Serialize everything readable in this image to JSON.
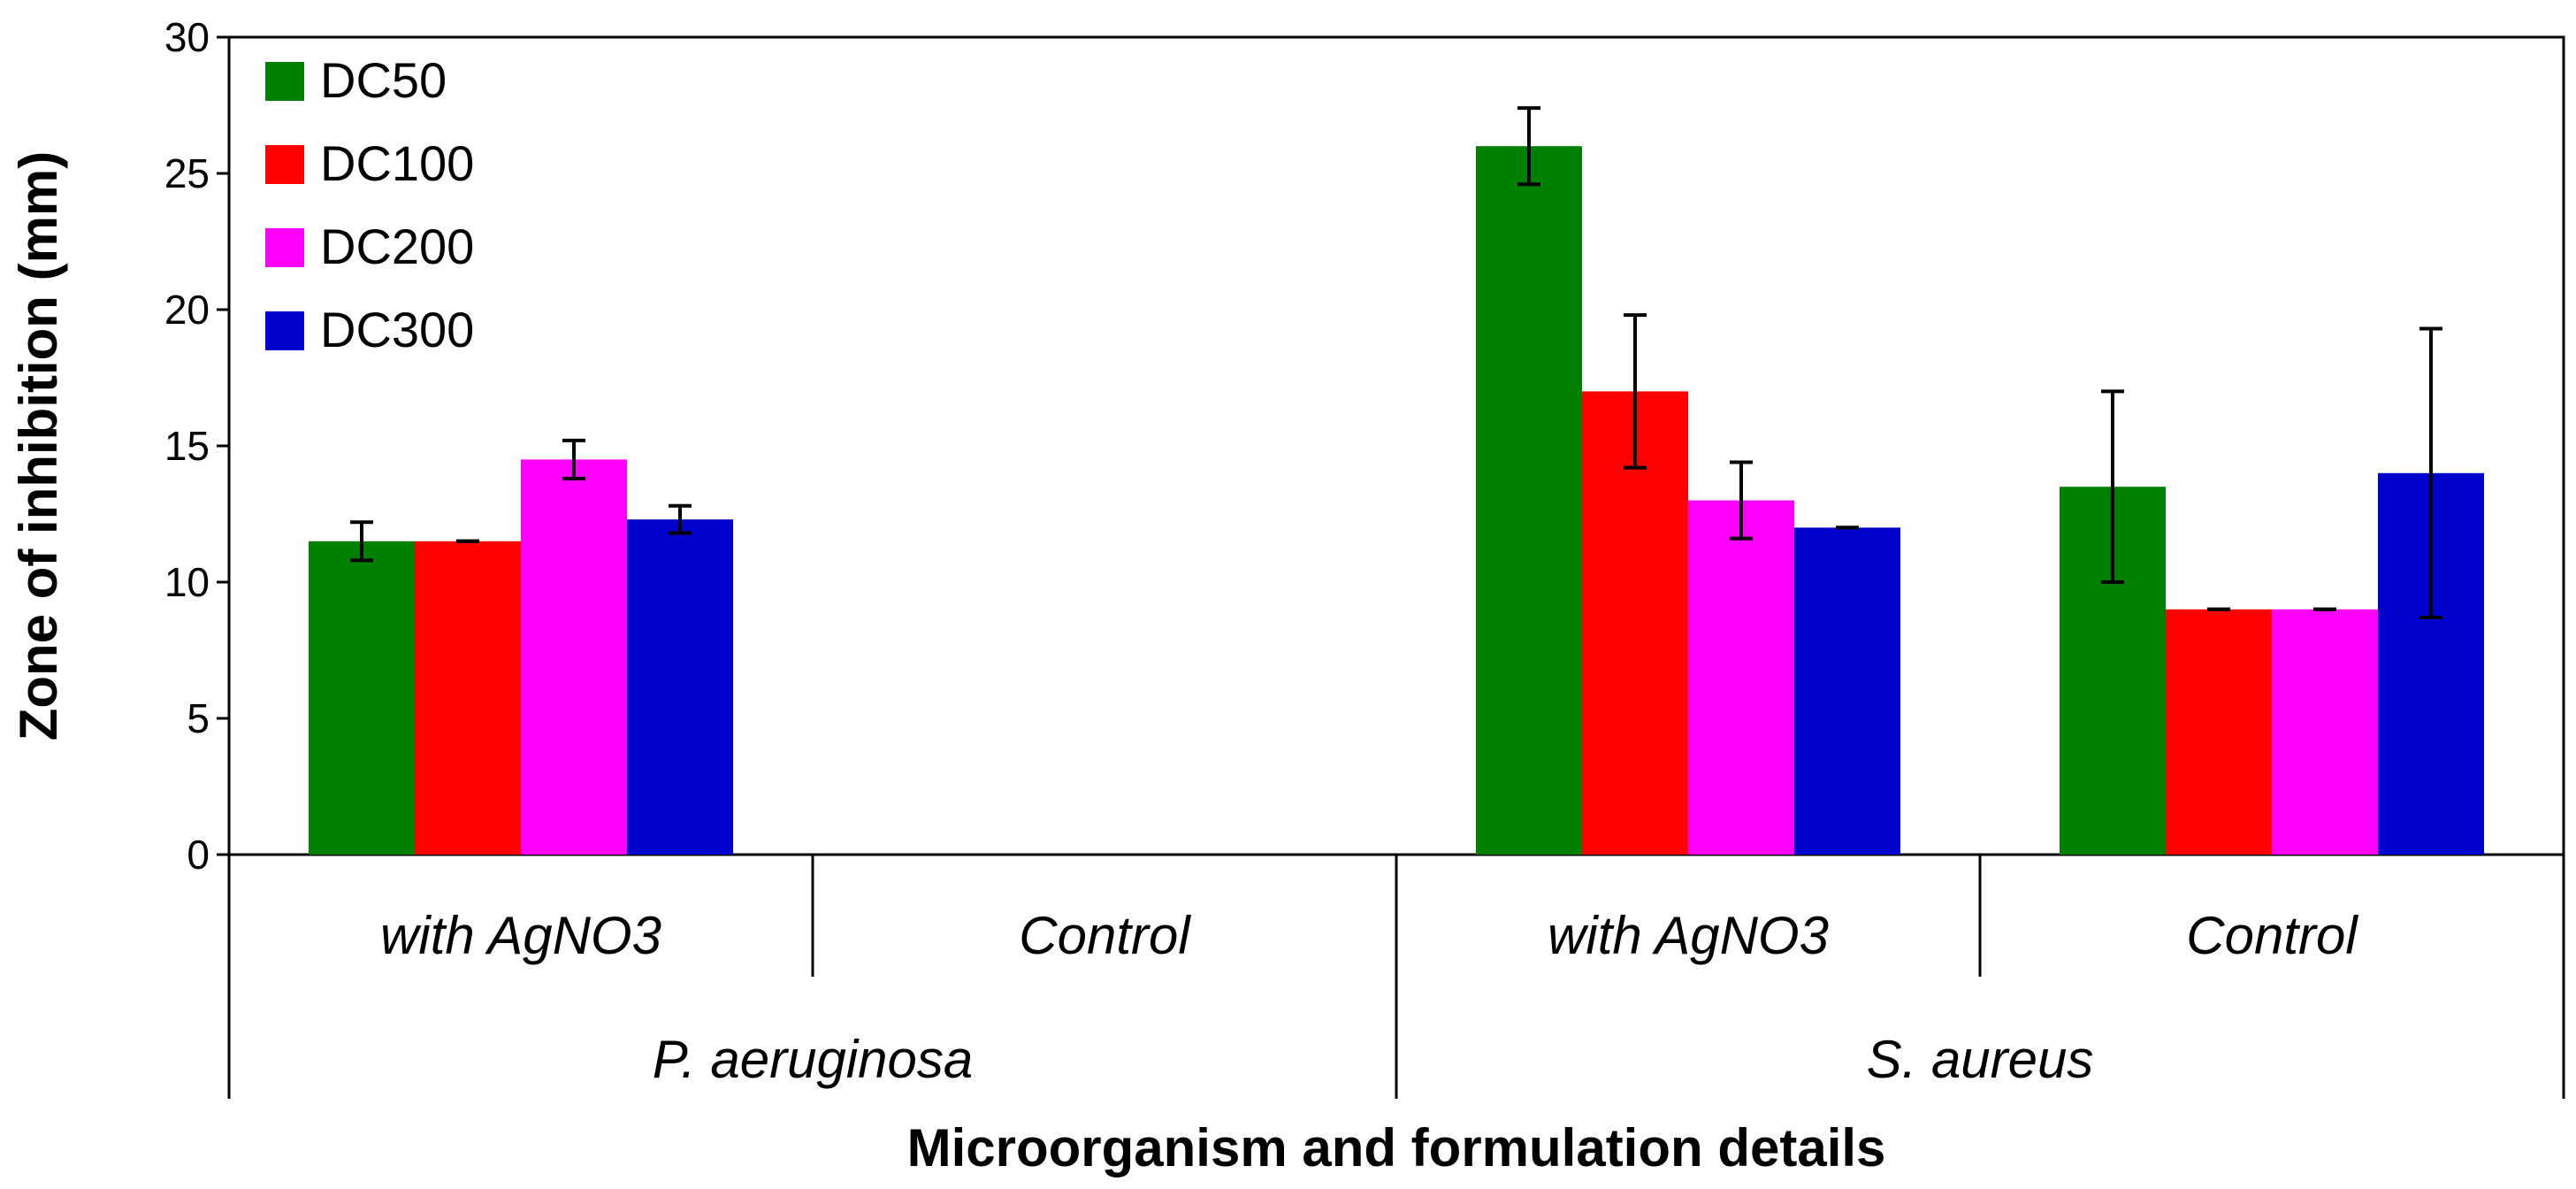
{
  "chart_data": {
    "type": "bar",
    "title": "",
    "xlabel": "Microorganism and formulation details",
    "ylabel": "Zone of inhibition (mm)",
    "ylim": [
      0,
      30
    ],
    "yticks": [
      0,
      5,
      10,
      15,
      20,
      25,
      30
    ],
    "groups": [
      {
        "organism": "P. aeruginosa",
        "categories": [
          "with AgNO3",
          "Control"
        ]
      },
      {
        "organism": "S. aureus",
        "categories": [
          "with AgNO3",
          "Control"
        ]
      }
    ],
    "categories": [
      "with AgNO3",
      "Control",
      "with AgNO3",
      "Control"
    ],
    "series": [
      {
        "name": "DC50",
        "color": "#008000",
        "values": [
          11.5,
          null,
          26.0,
          13.5
        ],
        "errors": [
          0.7,
          null,
          1.4,
          3.5
        ]
      },
      {
        "name": "DC100",
        "color": "#ff0000",
        "values": [
          11.5,
          null,
          17.0,
          9.0
        ],
        "errors": [
          0.0,
          null,
          2.8,
          0.0
        ]
      },
      {
        "name": "DC200",
        "color": "#ff00ff",
        "values": [
          14.5,
          null,
          13.0,
          9.0
        ],
        "errors": [
          0.7,
          null,
          1.4,
          0.0
        ]
      },
      {
        "name": "DC300",
        "color": "#0000cc",
        "values": [
          12.3,
          null,
          12.0,
          14.0
        ],
        "errors": [
          0.5,
          null,
          0.0,
          5.3
        ]
      }
    ],
    "legend_position": "top-left",
    "grid": false
  }
}
